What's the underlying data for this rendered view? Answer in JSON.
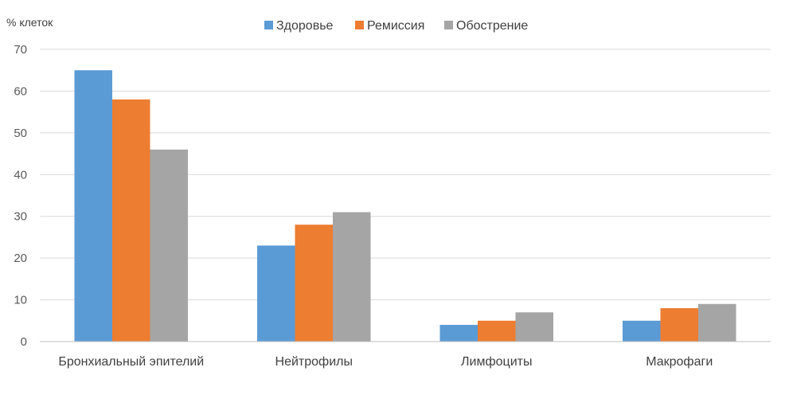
{
  "chart_data": {
    "type": "bar",
    "title": "",
    "xlabel": "",
    "ylabel": "% клеток",
    "ylim": [
      0,
      70
    ],
    "yticks": [
      0,
      10,
      20,
      30,
      40,
      50,
      60,
      70
    ],
    "grid": true,
    "legend_position": "top-center",
    "categories": [
      "Бронхиальный эпителий",
      "Нейтрофилы",
      "Лимфоциты",
      "Макрофаги"
    ],
    "series": [
      {
        "name": "Здоровье",
        "color": "#5b9bd5",
        "values": [
          65,
          23,
          4,
          5
        ]
      },
      {
        "name": "Ремиссия",
        "color": "#ed7d31",
        "values": [
          58,
          28,
          5,
          8
        ]
      },
      {
        "name": "Обострение",
        "color": "#a5a5a5",
        "values": [
          46,
          31,
          7,
          9
        ]
      }
    ]
  }
}
